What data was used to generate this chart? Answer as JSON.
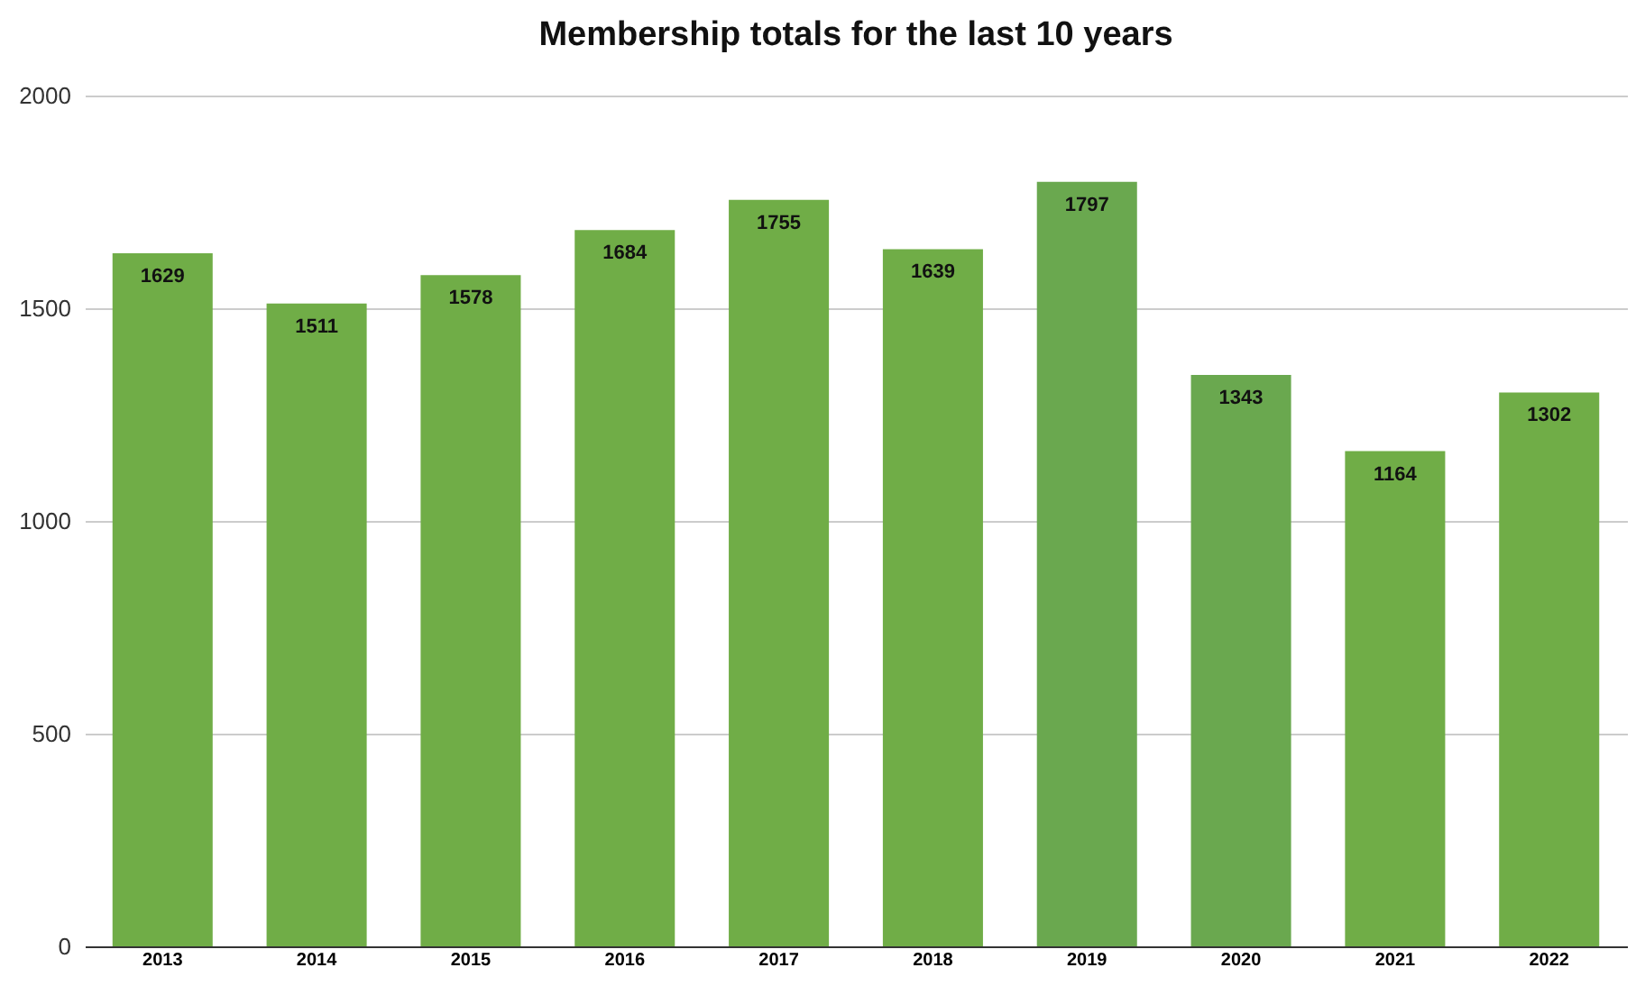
{
  "chart_data": {
    "type": "bar",
    "title": "Membership totals for the last 10 years",
    "categories": [
      "2013",
      "2014",
      "2015",
      "2016",
      "2017",
      "2018",
      "2019",
      "2020",
      "2021",
      "2022"
    ],
    "values": [
      1629,
      1511,
      1578,
      1684,
      1755,
      1639,
      1797,
      1343,
      1164,
      1302
    ],
    "colors": [
      "#70ad47",
      "#70ad47",
      "#70ad47",
      "#70ad47",
      "#70ad47",
      "#70ad47",
      "#6aa84f",
      "#6aa84f",
      "#70ad47",
      "#70ad47"
    ],
    "ylim": [
      0,
      2000
    ],
    "yticks": [
      0,
      500,
      1000,
      1500,
      2000
    ],
    "grid": "y",
    "data_labels": true
  }
}
